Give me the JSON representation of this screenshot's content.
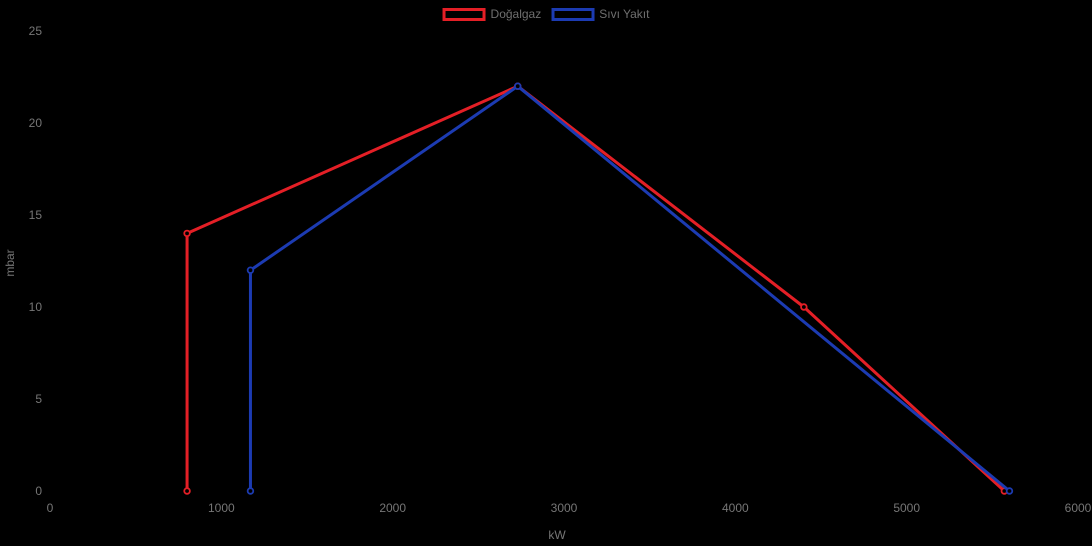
{
  "chart_data": {
    "type": "line",
    "title": "",
    "xlabel": "kW",
    "ylabel": "mbar",
    "xlim": [
      0,
      6000
    ],
    "ylim": [
      0,
      25
    ],
    "x_ticks": [
      0,
      1000,
      2000,
      3000,
      4000,
      5000,
      6000
    ],
    "y_ticks": [
      0,
      5,
      10,
      15,
      20,
      25
    ],
    "grid": false,
    "legend_position": "top-center",
    "background_color": "#000000",
    "tick_label_color": "#767676",
    "series": [
      {
        "name": "Doğalgaz",
        "color": "#e41f26",
        "marker": "open-circle",
        "line_width": 3,
        "points": [
          [
            800,
            0
          ],
          [
            800,
            14
          ],
          [
            2730,
            22
          ],
          [
            4400,
            10
          ],
          [
            5570,
            0
          ]
        ]
      },
      {
        "name": "Sıvı Yakıt",
        "color": "#1c3bb2",
        "marker": "open-circle",
        "line_width": 3,
        "points": [
          [
            1170,
            0
          ],
          [
            1170,
            12
          ],
          [
            2730,
            22
          ],
          [
            5600,
            0
          ]
        ]
      }
    ]
  }
}
